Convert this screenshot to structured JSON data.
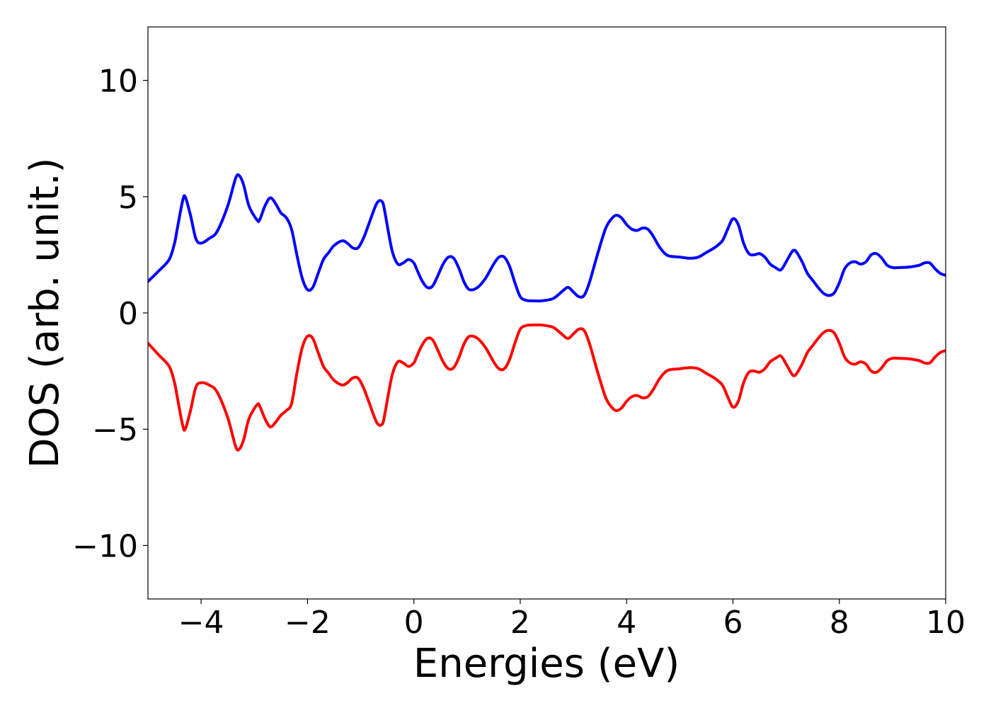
{
  "chart_data": {
    "type": "line",
    "title": "",
    "xlabel": "Energies (eV)",
    "ylabel": "DOS (arb. unit.)",
    "xlim": [
      -5,
      10
    ],
    "ylim": [
      -12.3,
      12.3
    ],
    "grid": false,
    "legend": "none",
    "xticks": [
      {
        "value": -4,
        "label": "−4"
      },
      {
        "value": -2,
        "label": "−2"
      },
      {
        "value": 0,
        "label": "0"
      },
      {
        "value": 2,
        "label": "2"
      },
      {
        "value": 4,
        "label": "4"
      },
      {
        "value": 6,
        "label": "6"
      },
      {
        "value": 8,
        "label": "8"
      },
      {
        "value": 10,
        "label": "10"
      }
    ],
    "yticks": [
      {
        "value": 10,
        "label": "10"
      },
      {
        "value": 5,
        "label": "5"
      },
      {
        "value": 0,
        "label": "0"
      },
      {
        "value": -5,
        "label": "−5"
      },
      {
        "value": -10,
        "label": "−10"
      }
    ],
    "series": [
      {
        "color": "#0000ff",
        "x": [
          -5.0,
          -4.8,
          -4.6,
          -4.5,
          -4.45,
          -4.35,
          -4.3,
          -4.2,
          -4.1,
          -4.0,
          -3.85,
          -3.7,
          -3.5,
          -3.35,
          -3.28,
          -3.2,
          -3.1,
          -2.95,
          -2.9,
          -2.8,
          -2.7,
          -2.6,
          -2.5,
          -2.4,
          -2.3,
          -2.2,
          -2.1,
          -2.0,
          -1.9,
          -1.8,
          -1.7,
          -1.6,
          -1.5,
          -1.35,
          -1.25,
          -1.15,
          -1.05,
          -0.95,
          -0.85,
          -0.7,
          -0.6,
          -0.55,
          -0.48,
          -0.4,
          -0.3,
          -0.2,
          -0.1,
          0.0,
          0.05,
          0.15,
          0.25,
          0.35,
          0.45,
          0.55,
          0.65,
          0.75,
          0.85,
          0.95,
          1.05,
          1.2,
          1.35,
          1.5,
          1.6,
          1.7,
          1.8,
          1.9,
          2.0,
          2.1,
          2.2,
          2.4,
          2.6,
          2.7,
          2.8,
          2.9,
          3.0,
          3.1,
          3.2,
          3.3,
          3.45,
          3.6,
          3.7,
          3.8,
          3.9,
          4.0,
          4.1,
          4.2,
          4.3,
          4.4,
          4.5,
          4.6,
          4.7,
          4.8,
          5.0,
          5.2,
          5.35,
          5.5,
          5.65,
          5.8,
          5.9,
          6.0,
          6.1,
          6.2,
          6.3,
          6.4,
          6.5,
          6.6,
          6.7,
          6.8,
          6.9,
          7.0,
          7.1,
          7.15,
          7.2,
          7.3,
          7.4,
          7.5,
          7.6,
          7.7,
          7.8,
          7.9,
          8.0,
          8.1,
          8.2,
          8.3,
          8.4,
          8.5,
          8.6,
          8.7,
          8.8,
          8.9,
          9.0,
          9.1,
          9.3,
          9.5,
          9.6,
          9.7,
          9.8,
          9.9,
          10.0
        ],
        "y": [
          1.35,
          1.8,
          2.3,
          3.0,
          3.6,
          4.8,
          5.0,
          4.2,
          3.2,
          3.0,
          3.2,
          3.5,
          4.6,
          5.8,
          5.9,
          5.5,
          4.6,
          4.0,
          4.0,
          4.6,
          4.95,
          4.7,
          4.3,
          4.1,
          3.6,
          2.5,
          1.5,
          1.0,
          1.1,
          1.7,
          2.3,
          2.6,
          2.9,
          3.1,
          3.0,
          2.8,
          2.8,
          3.2,
          3.8,
          4.7,
          4.8,
          4.4,
          3.5,
          2.6,
          2.1,
          2.15,
          2.3,
          2.15,
          1.9,
          1.4,
          1.1,
          1.15,
          1.6,
          2.1,
          2.4,
          2.35,
          1.9,
          1.3,
          1.0,
          1.1,
          1.5,
          2.1,
          2.4,
          2.4,
          2.0,
          1.3,
          0.7,
          0.55,
          0.52,
          0.52,
          0.6,
          0.75,
          0.95,
          1.1,
          0.9,
          0.7,
          0.75,
          1.3,
          2.5,
          3.6,
          4.0,
          4.2,
          4.1,
          3.8,
          3.6,
          3.55,
          3.65,
          3.6,
          3.3,
          2.9,
          2.6,
          2.45,
          2.4,
          2.35,
          2.4,
          2.6,
          2.8,
          3.1,
          3.6,
          4.05,
          3.8,
          3.0,
          2.55,
          2.5,
          2.55,
          2.4,
          2.1,
          1.95,
          1.85,
          2.2,
          2.6,
          2.7,
          2.6,
          2.2,
          1.7,
          1.4,
          1.1,
          0.85,
          0.75,
          0.85,
          1.3,
          1.9,
          2.15,
          2.2,
          2.1,
          2.2,
          2.5,
          2.55,
          2.35,
          2.05,
          1.95,
          1.95,
          1.97,
          2.05,
          2.15,
          2.15,
          1.9,
          1.7,
          1.62
        ]
      },
      {
        "color": "#ff0000",
        "x": [
          -5.0,
          -4.8,
          -4.6,
          -4.5,
          -4.45,
          -4.35,
          -4.3,
          -4.2,
          -4.1,
          -4.0,
          -3.85,
          -3.7,
          -3.5,
          -3.35,
          -3.28,
          -3.2,
          -3.1,
          -2.95,
          -2.9,
          -2.8,
          -2.7,
          -2.6,
          -2.5,
          -2.4,
          -2.3,
          -2.2,
          -2.1,
          -2.0,
          -1.9,
          -1.8,
          -1.7,
          -1.6,
          -1.5,
          -1.35,
          -1.25,
          -1.15,
          -1.05,
          -0.95,
          -0.85,
          -0.7,
          -0.6,
          -0.55,
          -0.48,
          -0.4,
          -0.3,
          -0.2,
          -0.1,
          0.0,
          0.05,
          0.15,
          0.25,
          0.35,
          0.45,
          0.55,
          0.65,
          0.75,
          0.85,
          0.95,
          1.05,
          1.2,
          1.35,
          1.5,
          1.6,
          1.7,
          1.8,
          1.9,
          2.0,
          2.1,
          2.2,
          2.4,
          2.6,
          2.7,
          2.8,
          2.9,
          3.0,
          3.1,
          3.2,
          3.3,
          3.45,
          3.6,
          3.7,
          3.8,
          3.9,
          4.0,
          4.1,
          4.2,
          4.3,
          4.4,
          4.5,
          4.6,
          4.7,
          4.8,
          5.0,
          5.2,
          5.35,
          5.5,
          5.65,
          5.8,
          5.9,
          6.0,
          6.1,
          6.2,
          6.3,
          6.4,
          6.5,
          6.6,
          6.7,
          6.8,
          6.9,
          7.0,
          7.1,
          7.15,
          7.2,
          7.3,
          7.4,
          7.5,
          7.6,
          7.7,
          7.8,
          7.9,
          8.0,
          8.1,
          8.2,
          8.3,
          8.4,
          8.5,
          8.6,
          8.7,
          8.8,
          8.9,
          9.0,
          9.1,
          9.3,
          9.5,
          9.6,
          9.7,
          9.8,
          9.9,
          10.0
        ],
        "y": [
          -1.3,
          -1.8,
          -2.3,
          -3.0,
          -3.6,
          -4.8,
          -5.0,
          -4.2,
          -3.2,
          -3.0,
          -3.1,
          -3.4,
          -4.5,
          -5.75,
          -5.85,
          -5.45,
          -4.55,
          -3.95,
          -4.0,
          -4.55,
          -4.9,
          -4.7,
          -4.4,
          -4.2,
          -3.9,
          -2.6,
          -1.5,
          -1.0,
          -1.1,
          -1.7,
          -2.3,
          -2.6,
          -2.9,
          -3.1,
          -3.0,
          -2.8,
          -2.8,
          -3.2,
          -3.8,
          -4.7,
          -4.8,
          -4.4,
          -3.5,
          -2.6,
          -2.1,
          -2.15,
          -2.3,
          -2.15,
          -1.9,
          -1.4,
          -1.1,
          -1.15,
          -1.6,
          -2.1,
          -2.4,
          -2.35,
          -1.9,
          -1.3,
          -1.0,
          -1.1,
          -1.5,
          -2.1,
          -2.4,
          -2.4,
          -2.0,
          -1.3,
          -0.7,
          -0.55,
          -0.52,
          -0.52,
          -0.6,
          -0.75,
          -0.95,
          -1.1,
          -0.9,
          -0.7,
          -0.75,
          -1.3,
          -2.5,
          -3.6,
          -4.0,
          -4.2,
          -4.1,
          -3.8,
          -3.6,
          -3.55,
          -3.65,
          -3.6,
          -3.3,
          -2.9,
          -2.6,
          -2.45,
          -2.4,
          -2.35,
          -2.4,
          -2.6,
          -2.8,
          -3.1,
          -3.6,
          -4.05,
          -3.8,
          -3.0,
          -2.55,
          -2.5,
          -2.55,
          -2.4,
          -2.1,
          -1.95,
          -1.85,
          -2.2,
          -2.6,
          -2.7,
          -2.6,
          -2.2,
          -1.7,
          -1.4,
          -1.1,
          -0.85,
          -0.75,
          -0.85,
          -1.3,
          -1.9,
          -2.15,
          -2.2,
          -2.1,
          -2.2,
          -2.5,
          -2.55,
          -2.35,
          -2.05,
          -1.95,
          -1.95,
          -1.97,
          -2.05,
          -2.15,
          -2.15,
          -1.9,
          -1.7,
          -1.62
        ]
      }
    ]
  }
}
